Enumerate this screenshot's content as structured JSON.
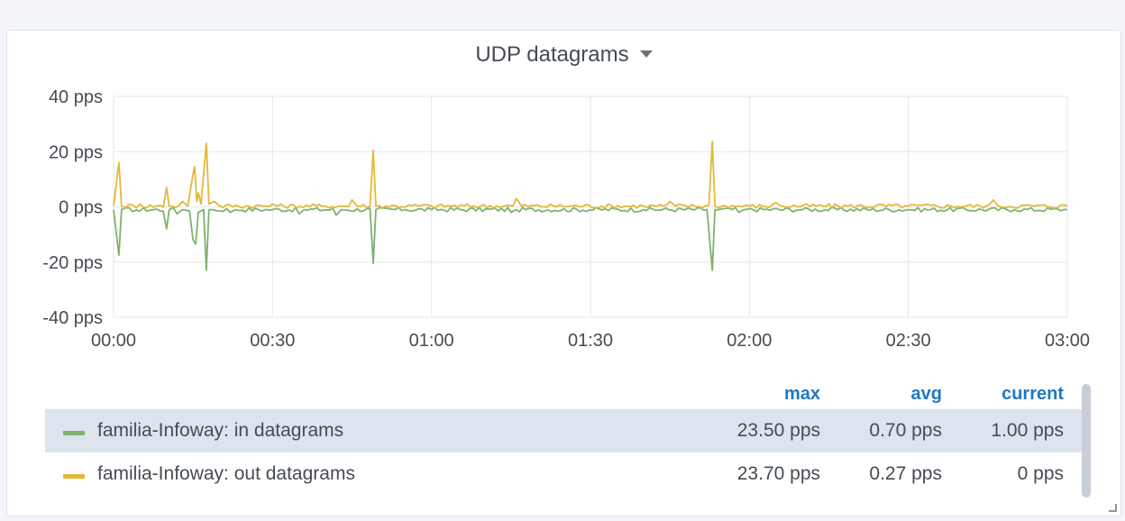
{
  "panel": {
    "title": "UDP datagrams"
  },
  "chart_data": {
    "type": "line",
    "title": "UDP datagrams",
    "unit": "pps",
    "ylim": [
      -40,
      40
    ],
    "y_ticks": [
      "40 pps",
      "20 pps",
      "0 pps",
      "-20 pps",
      "-40 pps"
    ],
    "x_ticks": [
      "00:00",
      "00:30",
      "01:00",
      "01:30",
      "02:00",
      "02:30",
      "03:00"
    ],
    "xlim_minutes": [
      0,
      180
    ],
    "grid": true,
    "series": [
      {
        "name": "familia-Infoway: in datagrams",
        "color": "#7eb26d",
        "baseline": -1,
        "points": [
          [
            0,
            -1
          ],
          [
            1,
            -17.5
          ],
          [
            1.5,
            -1
          ],
          [
            5,
            -1.5
          ],
          [
            10,
            -8
          ],
          [
            10.5,
            -1
          ],
          [
            12,
            -2.5
          ],
          [
            13,
            -1
          ],
          [
            15,
            -12
          ],
          [
            15.5,
            -13.5
          ],
          [
            16,
            -2
          ],
          [
            17,
            -1
          ],
          [
            17.5,
            -23
          ],
          [
            18,
            -1
          ],
          [
            20,
            -1.5
          ],
          [
            22,
            -2
          ],
          [
            23,
            -1
          ],
          [
            30,
            -1
          ],
          [
            35,
            -2.5
          ],
          [
            36,
            -1
          ],
          [
            42,
            -3
          ],
          [
            43,
            -1
          ],
          [
            49,
            -20.5
          ],
          [
            49.5,
            -1
          ],
          [
            55,
            -1
          ],
          [
            60,
            -1
          ],
          [
            75,
            -2
          ],
          [
            76,
            -1
          ],
          [
            100,
            -1
          ],
          [
            112,
            -1
          ],
          [
            113,
            -23
          ],
          [
            113.5,
            -1
          ],
          [
            118,
            -2
          ],
          [
            119,
            -1
          ],
          [
            130,
            -1
          ],
          [
            150,
            -1
          ],
          [
            170,
            -1
          ],
          [
            180,
            -1
          ]
        ]
      },
      {
        "name": "familia-Infoway: out datagrams",
        "color": "#e5b838",
        "baseline": 0.3,
        "points": [
          [
            0,
            0.3
          ],
          [
            1,
            16
          ],
          [
            1.5,
            0.3
          ],
          [
            5,
            1
          ],
          [
            10,
            7
          ],
          [
            10.5,
            0.3
          ],
          [
            13,
            2
          ],
          [
            14,
            0.3
          ],
          [
            15,
            12
          ],
          [
            15.3,
            14.5
          ],
          [
            15.7,
            2
          ],
          [
            16,
            5
          ],
          [
            16.5,
            1
          ],
          [
            17.5,
            23
          ],
          [
            18,
            1
          ],
          [
            19,
            2
          ],
          [
            20,
            0.3
          ],
          [
            30,
            1
          ],
          [
            31,
            0.3
          ],
          [
            40,
            0.3
          ],
          [
            45,
            2.5
          ],
          [
            46,
            0.3
          ],
          [
            49,
            20.5
          ],
          [
            49.5,
            0.3
          ],
          [
            60,
            0.3
          ],
          [
            76,
            3
          ],
          [
            77,
            0.3
          ],
          [
            100,
            0.3
          ],
          [
            105,
            2
          ],
          [
            106,
            0.3
          ],
          [
            113,
            23.7
          ],
          [
            113.5,
            0.3
          ],
          [
            120,
            0.3
          ],
          [
            125,
            1.5
          ],
          [
            126,
            0.3
          ],
          [
            150,
            0.3
          ],
          [
            166,
            2.5
          ],
          [
            167,
            0.3
          ],
          [
            180,
            0.3
          ]
        ]
      }
    ]
  },
  "legend": {
    "columns": [
      "max",
      "avg",
      "current"
    ],
    "rows": [
      {
        "name": "familia-Infoway: in datagrams",
        "color": "#7eb26d",
        "max": "23.50 pps",
        "avg": "0.70 pps",
        "current": "1.00 pps"
      },
      {
        "name": "familia-Infoway: out datagrams",
        "color": "#e5b838",
        "max": "23.70 pps",
        "avg": "0.27 pps",
        "current": "0 pps"
      }
    ]
  }
}
